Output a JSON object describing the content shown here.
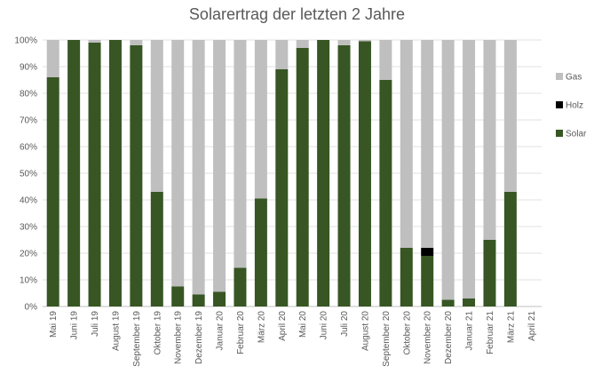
{
  "chart_data": {
    "type": "bar",
    "stacked": "percent",
    "title": "Solarertrag der letzten 2 Jahre",
    "xlabel": "",
    "ylabel": "",
    "ylim": [
      0,
      100
    ],
    "y_ticks": [
      "0%",
      "10%",
      "20%",
      "30%",
      "40%",
      "50%",
      "60%",
      "70%",
      "80%",
      "90%",
      "100%"
    ],
    "grid": true,
    "legend_position": "right",
    "categories": [
      "Mai 19",
      "Juni 19",
      "Juli 19",
      "August 19",
      "September 19",
      "Oktober 19",
      "November 19",
      "Dezember 19",
      "Januar 20",
      "Februar 20",
      "März 20",
      "April 20",
      "Mai 20",
      "Juni 20",
      "Juli 20",
      "August 20",
      "September 20",
      "Oktober 20",
      "November 20",
      "Dezember 20",
      "Januar 21",
      "Februar 21",
      "März 21",
      "April 21"
    ],
    "series": [
      {
        "name": "Solar",
        "color": "#375623",
        "values": [
          86,
          100,
          99,
          100,
          98,
          43,
          7.5,
          4.5,
          5.5,
          14.5,
          40.5,
          89,
          97,
          100,
          98,
          99.5,
          85,
          22,
          19,
          2.5,
          3,
          25,
          43,
          0
        ]
      },
      {
        "name": "Holz",
        "color": "#000000",
        "values": [
          0,
          0,
          0,
          0,
          0,
          0,
          0,
          0,
          0,
          0,
          0,
          0,
          0,
          0,
          0,
          0,
          0,
          0,
          3,
          0,
          0,
          0,
          0,
          0
        ]
      },
      {
        "name": "Gas",
        "color": "#bfbfbf",
        "values": [
          14,
          0,
          1,
          0,
          2,
          57,
          92.5,
          95.5,
          94.5,
          85.5,
          59.5,
          11,
          3,
          0,
          2,
          0.5,
          15,
          78,
          78,
          97.5,
          97,
          75,
          57,
          0
        ]
      }
    ]
  }
}
